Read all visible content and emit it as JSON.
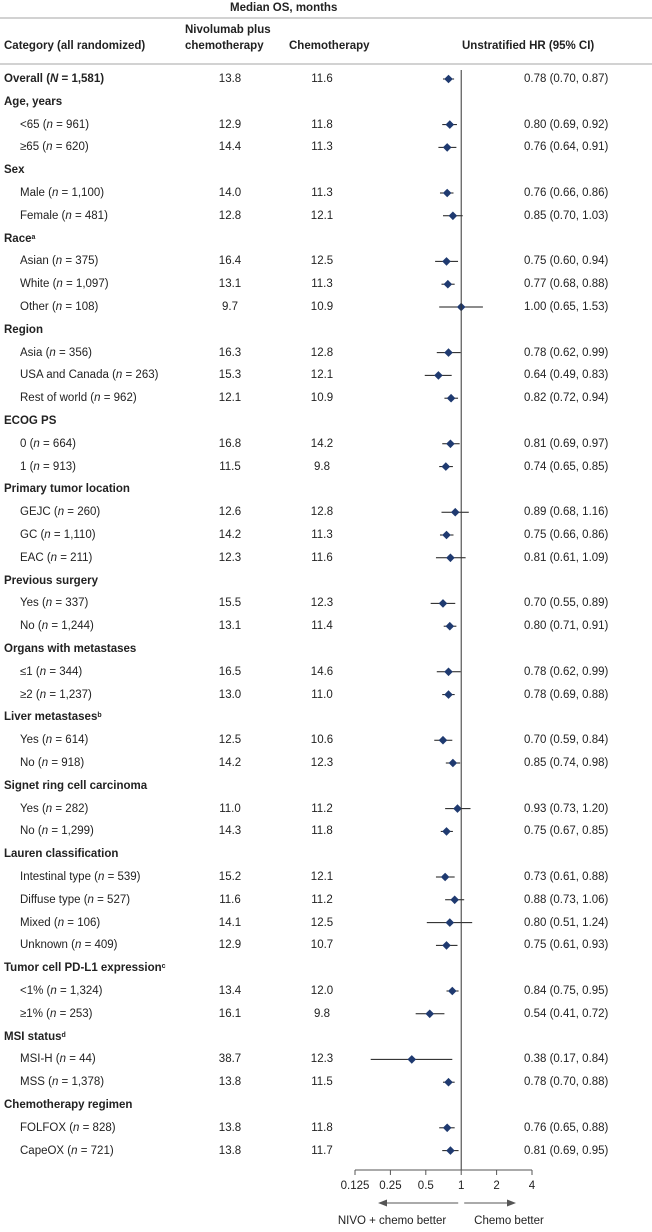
{
  "header": {
    "group_title": "Median OS, months",
    "col_category": "Category (all randomized)",
    "col_nivo_line1": "Nivolumab plus",
    "col_nivo_line2": "chemotherapy",
    "col_chemo": "Chemotherapy",
    "col_hr": "Unstratified HR (95% CI)"
  },
  "rows": [
    {
      "kind": "overall",
      "label": "Overall (N = 1,581)",
      "nivo": "13.8",
      "chemo": "11.6",
      "ci": "0.78 (0.70, 0.87)",
      "hr": 0.78,
      "lo": 0.7,
      "hi": 0.87
    },
    {
      "kind": "section",
      "label": "Age, years"
    },
    {
      "kind": "row",
      "label": "<65 (n = 961)",
      "nivo": "12.9",
      "chemo": "11.8",
      "ci": "0.80 (0.69, 0.92)",
      "hr": 0.8,
      "lo": 0.69,
      "hi": 0.92
    },
    {
      "kind": "row",
      "label": "≥65 (n = 620)",
      "nivo": "14.4",
      "chemo": "11.3",
      "ci": "0.76 (0.64, 0.91)",
      "hr": 0.76,
      "lo": 0.64,
      "hi": 0.91
    },
    {
      "kind": "section",
      "label": "Sex"
    },
    {
      "kind": "row",
      "label": "Male (n = 1,100)",
      "nivo": "14.0",
      "chemo": "11.3",
      "ci": "0.76 (0.66, 0.86)",
      "hr": 0.76,
      "lo": 0.66,
      "hi": 0.86
    },
    {
      "kind": "row",
      "label": "Female (n = 481)",
      "nivo": "12.8",
      "chemo": "12.1",
      "ci": "0.85 (0.70, 1.03)",
      "hr": 0.85,
      "lo": 0.7,
      "hi": 1.03
    },
    {
      "kind": "section",
      "label": "Race",
      "sup": "a"
    },
    {
      "kind": "row",
      "label": "Asian (n = 375)",
      "nivo": "16.4",
      "chemo": "12.5",
      "ci": "0.75 (0.60, 0.94)",
      "hr": 0.75,
      "lo": 0.6,
      "hi": 0.94
    },
    {
      "kind": "row",
      "label": "White (n = 1,097)",
      "nivo": "13.1",
      "chemo": "11.3",
      "ci": "0.77 (0.68, 0.88)",
      "hr": 0.77,
      "lo": 0.68,
      "hi": 0.88
    },
    {
      "kind": "row",
      "label": "Other (n = 108)",
      "nivo": "9.7",
      "chemo": "10.9",
      "ci": "1.00 (0.65, 1.53)",
      "hr": 1.0,
      "lo": 0.65,
      "hi": 1.53
    },
    {
      "kind": "section",
      "label": "Region"
    },
    {
      "kind": "row",
      "label": "Asia (n = 356)",
      "nivo": "16.3",
      "chemo": "12.8",
      "ci": "0.78 (0.62, 0.99)",
      "hr": 0.78,
      "lo": 0.62,
      "hi": 0.99
    },
    {
      "kind": "row",
      "label": "USA and Canada (n = 263)",
      "nivo": "15.3",
      "chemo": "12.1",
      "ci": "0.64 (0.49, 0.83)",
      "hr": 0.64,
      "lo": 0.49,
      "hi": 0.83
    },
    {
      "kind": "row",
      "label": "Rest of world (n = 962)",
      "nivo": "12.1",
      "chemo": "10.9",
      "ci": "0.82 (0.72, 0.94)",
      "hr": 0.82,
      "lo": 0.72,
      "hi": 0.94
    },
    {
      "kind": "section",
      "label": "ECOG PS"
    },
    {
      "kind": "row",
      "label": "0 (n = 664)",
      "nivo": "16.8",
      "chemo": "14.2",
      "ci": "0.81 (0.69, 0.97)",
      "hr": 0.81,
      "lo": 0.69,
      "hi": 0.97
    },
    {
      "kind": "row",
      "label": "1 (n = 913)",
      "nivo": "11.5",
      "chemo": "9.8",
      "ci": "0.74 (0.65, 0.85)",
      "hr": 0.74,
      "lo": 0.65,
      "hi": 0.85
    },
    {
      "kind": "section",
      "label": "Primary tumor location"
    },
    {
      "kind": "row",
      "label": "GEJC (n = 260)",
      "nivo": "12.6",
      "chemo": "12.8",
      "ci": "0.89 (0.68, 1.16)",
      "hr": 0.89,
      "lo": 0.68,
      "hi": 1.16
    },
    {
      "kind": "row",
      "label": "GC (n = 1,110)",
      "nivo": "14.2",
      "chemo": "11.3",
      "ci": "0.75 (0.66, 0.86)",
      "hr": 0.75,
      "lo": 0.66,
      "hi": 0.86
    },
    {
      "kind": "row",
      "label": "EAC (n = 211)",
      "nivo": "12.3",
      "chemo": "11.6",
      "ci": "0.81 (0.61, 1.09)",
      "hr": 0.81,
      "lo": 0.61,
      "hi": 1.09
    },
    {
      "kind": "section",
      "label": "Previous surgery"
    },
    {
      "kind": "row",
      "label": "Yes (n = 337)",
      "nivo": "15.5",
      "chemo": "12.3",
      "ci": "0.70 (0.55, 0.89)",
      "hr": 0.7,
      "lo": 0.55,
      "hi": 0.89
    },
    {
      "kind": "row",
      "label": "No (n = 1,244)",
      "nivo": "13.1",
      "chemo": "11.4",
      "ci": "0.80 (0.71, 0.91)",
      "hr": 0.8,
      "lo": 0.71,
      "hi": 0.91
    },
    {
      "kind": "section",
      "label": "Organs with metastases"
    },
    {
      "kind": "row",
      "label": "≤1 (n = 344)",
      "nivo": "16.5",
      "chemo": "14.6",
      "ci": "0.78 (0.62, 0.99)",
      "hr": 0.78,
      "lo": 0.62,
      "hi": 0.99
    },
    {
      "kind": "row",
      "label": "≥2 (n = 1,237)",
      "nivo": "13.0",
      "chemo": "11.0",
      "ci": "0.78 (0.69, 0.88)",
      "hr": 0.78,
      "lo": 0.69,
      "hi": 0.88
    },
    {
      "kind": "section",
      "label": "Liver metastases",
      "sup": "b"
    },
    {
      "kind": "row",
      "label": "Yes (n = 614)",
      "nivo": "12.5",
      "chemo": "10.6",
      "ci": "0.70 (0.59, 0.84)",
      "hr": 0.7,
      "lo": 0.59,
      "hi": 0.84
    },
    {
      "kind": "row",
      "label": "No (n = 918)",
      "nivo": "14.2",
      "chemo": "12.3",
      "ci": "0.85 (0.74, 0.98)",
      "hr": 0.85,
      "lo": 0.74,
      "hi": 0.98
    },
    {
      "kind": "section",
      "label": "Signet ring cell carcinoma"
    },
    {
      "kind": "row",
      "label": "Yes (n = 282)",
      "nivo": "11.0",
      "chemo": "11.2",
      "ci": "0.93 (0.73, 1.20)",
      "hr": 0.93,
      "lo": 0.73,
      "hi": 1.2
    },
    {
      "kind": "row",
      "label": "No (n = 1,299)",
      "nivo": "14.3",
      "chemo": "11.8",
      "ci": "0.75 (0.67, 0.85)",
      "hr": 0.75,
      "lo": 0.67,
      "hi": 0.85
    },
    {
      "kind": "section",
      "label": "Lauren classification"
    },
    {
      "kind": "row",
      "label": "Intestinal type (n = 539)",
      "nivo": "15.2",
      "chemo": "12.1",
      "ci": "0.73 (0.61, 0.88)",
      "hr": 0.73,
      "lo": 0.61,
      "hi": 0.88
    },
    {
      "kind": "row",
      "label": "Diffuse type (n = 527)",
      "nivo": "11.6",
      "chemo": "11.2",
      "ci": "0.88 (0.73, 1.06)",
      "hr": 0.88,
      "lo": 0.73,
      "hi": 1.06
    },
    {
      "kind": "row",
      "label": "Mixed (n = 106)",
      "nivo": "14.1",
      "chemo": "12.5",
      "ci": "0.80 (0.51, 1.24)",
      "hr": 0.8,
      "lo": 0.51,
      "hi": 1.24
    },
    {
      "kind": "row",
      "label": "Unknown (n = 409)",
      "nivo": "12.9",
      "chemo": "10.7",
      "ci": "0.75 (0.61, 0.93)",
      "hr": 0.75,
      "lo": 0.61,
      "hi": 0.93
    },
    {
      "kind": "section",
      "label": "Tumor cell PD-L1 expression",
      "sup": "c"
    },
    {
      "kind": "row",
      "label": "<1% (n = 1,324)",
      "nivo": "13.4",
      "chemo": "12.0",
      "ci": "0.84 (0.75, 0.95)",
      "hr": 0.84,
      "lo": 0.75,
      "hi": 0.95
    },
    {
      "kind": "row",
      "label": "≥1% (n = 253)",
      "nivo": "16.1",
      "chemo": "9.8",
      "ci": "0.54 (0.41, 0.72)",
      "hr": 0.54,
      "lo": 0.41,
      "hi": 0.72
    },
    {
      "kind": "section",
      "label": "MSI status",
      "sup": "d"
    },
    {
      "kind": "row",
      "label": "MSI-H (n = 44)",
      "nivo": "38.7",
      "chemo": "12.3",
      "ci": "0.38 (0.17, 0.84)",
      "hr": 0.38,
      "lo": 0.17,
      "hi": 0.84
    },
    {
      "kind": "row",
      "label": "MSS (n = 1,378)",
      "nivo": "13.8",
      "chemo": "11.5",
      "ci": "0.78 (0.70, 0.88)",
      "hr": 0.78,
      "lo": 0.7,
      "hi": 0.88
    },
    {
      "kind": "section",
      "label": "Chemotherapy regimen"
    },
    {
      "kind": "row",
      "label": "FOLFOX (n = 828)",
      "nivo": "13.8",
      "chemo": "11.8",
      "ci": "0.76 (0.65, 0.88)",
      "hr": 0.76,
      "lo": 0.65,
      "hi": 0.88
    },
    {
      "kind": "row",
      "label": "CapeOX (n = 721)",
      "nivo": "13.8",
      "chemo": "11.7",
      "ci": "0.81 (0.69, 0.95)",
      "hr": 0.81,
      "lo": 0.69,
      "hi": 0.95
    }
  ],
  "chart_data": {
    "type": "scatter",
    "scale": "log2",
    "xlim": [
      0.125,
      4
    ],
    "xticks": [
      0.125,
      0.25,
      0.5,
      1,
      2,
      4
    ],
    "xtick_labels": [
      "0.125",
      "0.25",
      "0.5",
      "1",
      "2",
      "4"
    ],
    "reference_line": 1,
    "left_label": "NIVO + chemo better",
    "right_label": "Chemo better",
    "marker_color": "#1f3a70",
    "note": "Point estimates with 95% CI for each row listed in rows[]"
  }
}
